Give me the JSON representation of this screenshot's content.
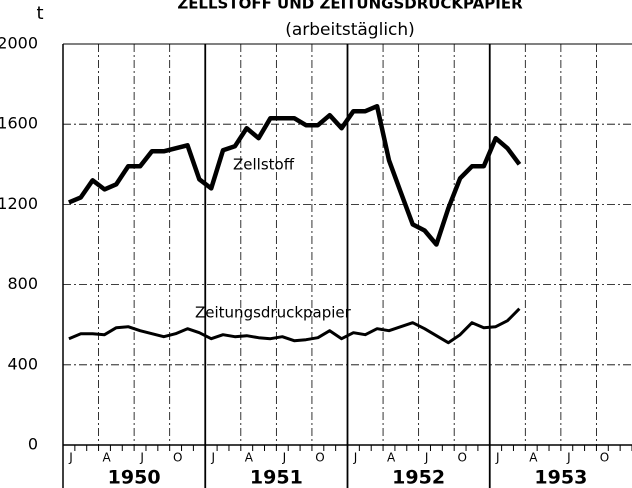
{
  "chart_data": {
    "type": "line",
    "title": "ZELLSTOFF UND ZEITUNGSDRUCKPAPIER",
    "subtitle": "(arbeitstäglich)",
    "y_label": "t",
    "categories": [
      "J",
      null,
      null,
      "A",
      null,
      null,
      "J",
      null,
      null,
      "O",
      null,
      null,
      "J",
      null,
      null,
      "A",
      null,
      null,
      "J",
      null,
      null,
      "O",
      null,
      null,
      "J",
      null,
      null,
      "A",
      null,
      null,
      "J",
      null,
      null,
      "O",
      null,
      null,
      "J",
      null,
      null,
      "A",
      null,
      null,
      "J",
      null,
      null,
      "O",
      null,
      null
    ],
    "year_labels": [
      "1950",
      "1951",
      "1952",
      "1953"
    ],
    "series": [
      {
        "name": "Zellstoff",
        "color": "#000000",
        "values": [
          1210,
          1235,
          1320,
          1275,
          1300,
          1390,
          1390,
          1465,
          1465,
          1480,
          1495,
          1325,
          1280,
          1470,
          1490,
          1580,
          1530,
          1630,
          1630,
          1630,
          1595,
          1595,
          1645,
          1580,
          1665,
          1665,
          1690,
          1420,
          1260,
          1100,
          1070,
          1000,
          1180,
          1330,
          1390,
          1390,
          1530,
          1480,
          1400,
          null,
          null,
          null,
          null,
          null,
          null,
          null,
          null,
          null
        ]
      },
      {
        "name": "Zeitungsdruckpapier",
        "color": "#000000",
        "values": [
          530,
          555,
          555,
          550,
          585,
          590,
          570,
          555,
          540,
          555,
          580,
          560,
          530,
          550,
          540,
          545,
          535,
          530,
          540,
          520,
          525,
          535,
          570,
          530,
          560,
          550,
          580,
          570,
          590,
          610,
          580,
          545,
          510,
          550,
          610,
          585,
          590,
          620,
          680,
          null,
          null,
          null,
          null,
          null,
          null,
          null,
          null,
          null
        ]
      }
    ],
    "ylim": [
      0,
      2000
    ],
    "yticks": [
      0,
      400,
      800,
      1200,
      1600,
      2000
    ],
    "grid": true
  }
}
